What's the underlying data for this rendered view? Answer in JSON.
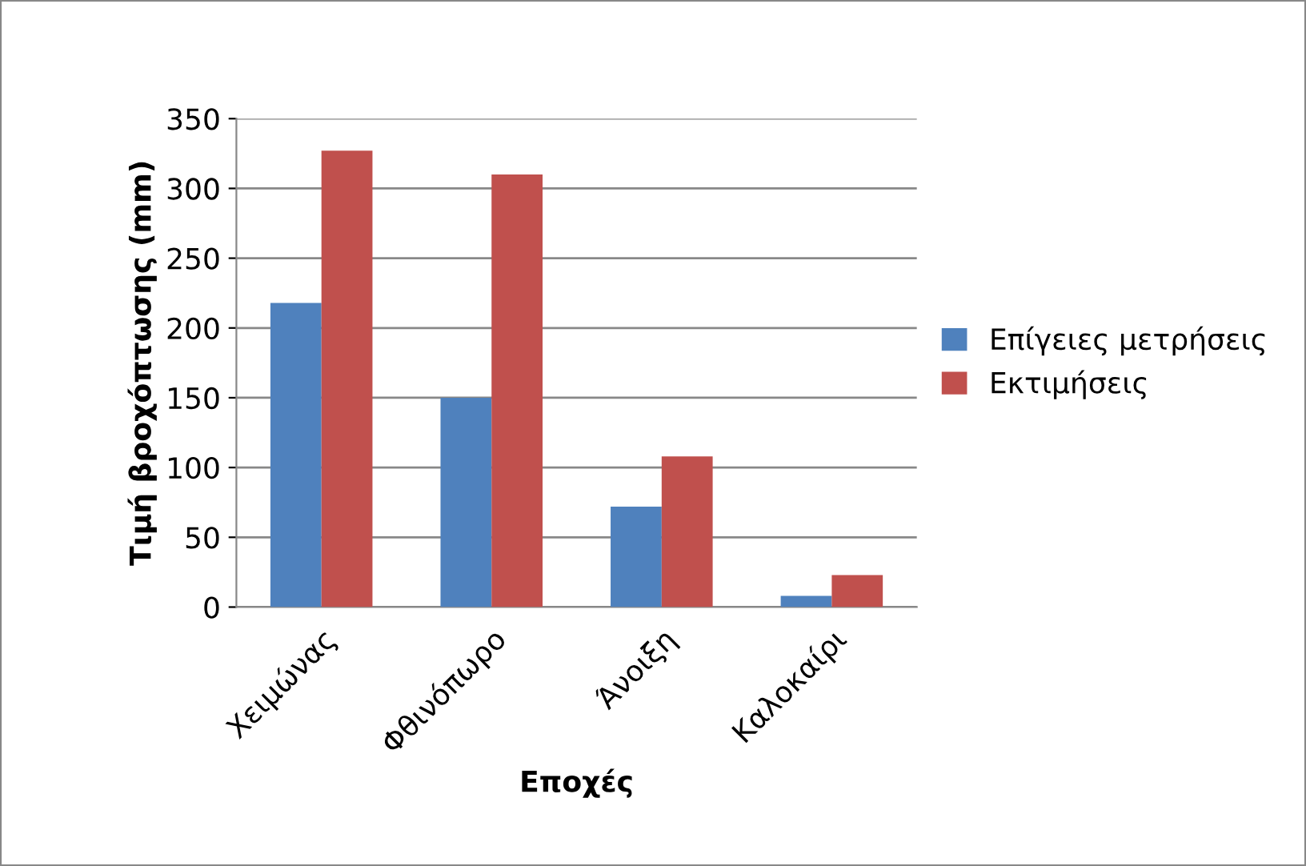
{
  "chart_data": {
    "type": "bar",
    "xlabel": "Εποχές",
    "ylabel": "Τιμή βροχόπτωσης (mm)",
    "categories": [
      "Χειμώνας",
      "Φθινόπωρο",
      "Άνοιξη",
      "Καλοκαίρι"
    ],
    "series": [
      {
        "name": "Επίγειες μετρήσεις",
        "color": "#4f81bd",
        "values": [
          218,
          150,
          72,
          8
        ]
      },
      {
        "name": "Εκτιμήσεις",
        "color": "#c0504d",
        "values": [
          327,
          310,
          108,
          23
        ]
      }
    ],
    "ylim": [
      0,
      350
    ],
    "yticks": [
      0,
      50,
      100,
      150,
      200,
      250,
      300,
      350
    ],
    "grid": "y",
    "legend": "right"
  }
}
